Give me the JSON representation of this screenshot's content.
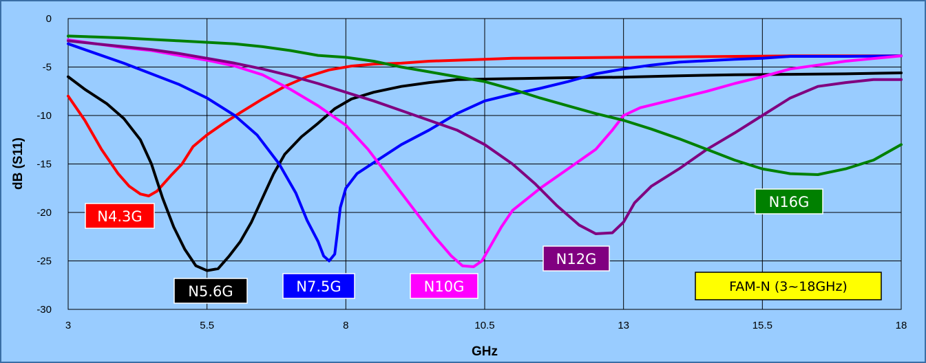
{
  "chart_data": {
    "type": "line",
    "xlabel": "GHz",
    "ylabel": "dB (S11)",
    "xlim": [
      3,
      18
    ],
    "ylim": [
      -30,
      0
    ],
    "x_ticks": [
      "3",
      "5.5",
      "8",
      "10.5",
      "13",
      "15.5",
      "18"
    ],
    "y_ticks": [
      "0",
      "-5",
      "-10",
      "-15",
      "-20",
      "-25",
      "-30"
    ],
    "grid": true,
    "legend": "none",
    "info_box": "FAM-N (3~18GHz)",
    "colors": {
      "background": "#99ccff",
      "frame": "#3a6ea5",
      "grid": "#000000",
      "info_box_fill": "#ffff00"
    },
    "series": [
      {
        "name": "N4.3G",
        "color": "#ff0000",
        "label_fill": "#ff0000",
        "label_text_color": "#ffffff",
        "points": [
          [
            3,
            -8
          ],
          [
            3.3,
            -10.5
          ],
          [
            3.6,
            -13.5
          ],
          [
            3.9,
            -16
          ],
          [
            4.1,
            -17.3
          ],
          [
            4.3,
            -18.1
          ],
          [
            4.45,
            -18.3
          ],
          [
            4.6,
            -17.8
          ],
          [
            4.85,
            -16.2
          ],
          [
            5.05,
            -15
          ],
          [
            5.25,
            -13.2
          ],
          [
            5.5,
            -12
          ],
          [
            5.8,
            -10.8
          ],
          [
            6.1,
            -9.7
          ],
          [
            6.5,
            -8.3
          ],
          [
            6.9,
            -7
          ],
          [
            7.3,
            -6
          ],
          [
            7.7,
            -5.3
          ],
          [
            8.1,
            -4.9
          ],
          [
            8.5,
            -4.7
          ],
          [
            9,
            -4.6
          ],
          [
            9.5,
            -4.4
          ],
          [
            10,
            -4.3
          ],
          [
            10.5,
            -4.2
          ],
          [
            11,
            -4.1
          ],
          [
            12,
            -4.05
          ],
          [
            13,
            -4
          ],
          [
            14,
            -3.95
          ],
          [
            15,
            -3.9
          ],
          [
            16,
            -3.85
          ],
          [
            17,
            -3.85
          ],
          [
            18,
            -3.85
          ]
        ]
      },
      {
        "name": "N5.6G",
        "color": "#000000",
        "label_fill": "#000000",
        "label_text_color": "#ffffff",
        "points": [
          [
            3,
            -6
          ],
          [
            3.3,
            -7.3
          ],
          [
            3.7,
            -8.8
          ],
          [
            4,
            -10.3
          ],
          [
            4.3,
            -12.5
          ],
          [
            4.5,
            -15
          ],
          [
            4.7,
            -18.5
          ],
          [
            4.9,
            -21.5
          ],
          [
            5.1,
            -23.8
          ],
          [
            5.3,
            -25.5
          ],
          [
            5.5,
            -26
          ],
          [
            5.7,
            -25.8
          ],
          [
            5.9,
            -24.5
          ],
          [
            6.1,
            -23
          ],
          [
            6.3,
            -21
          ],
          [
            6.5,
            -18.5
          ],
          [
            6.7,
            -16
          ],
          [
            6.9,
            -14
          ],
          [
            7.2,
            -12.2
          ],
          [
            7.5,
            -10.8
          ],
          [
            7.8,
            -9.3
          ],
          [
            8.1,
            -8.3
          ],
          [
            8.5,
            -7.6
          ],
          [
            9,
            -7
          ],
          [
            9.5,
            -6.6
          ],
          [
            10,
            -6.3
          ],
          [
            11,
            -6.2
          ],
          [
            12,
            -6.1
          ],
          [
            13,
            -6.05
          ],
          [
            14,
            -5.9
          ],
          [
            15,
            -5.8
          ],
          [
            16,
            -5.75
          ],
          [
            17,
            -5.7
          ],
          [
            18,
            -5.6
          ]
        ]
      },
      {
        "name": "N7.5G",
        "color": "#0000ff",
        "label_fill": "#0000ff",
        "label_text_color": "#ffffff",
        "points": [
          [
            3,
            -2.6
          ],
          [
            3.5,
            -3.6
          ],
          [
            4,
            -4.6
          ],
          [
            4.5,
            -5.7
          ],
          [
            5,
            -6.8
          ],
          [
            5.5,
            -8.2
          ],
          [
            6,
            -10
          ],
          [
            6.4,
            -12
          ],
          [
            6.8,
            -15
          ],
          [
            7.1,
            -18
          ],
          [
            7.3,
            -20.8
          ],
          [
            7.5,
            -23
          ],
          [
            7.6,
            -24.5
          ],
          [
            7.7,
            -25
          ],
          [
            7.8,
            -24.3
          ],
          [
            7.85,
            -22
          ],
          [
            7.9,
            -19.5
          ],
          [
            8,
            -17.5
          ],
          [
            8.2,
            -16
          ],
          [
            8.6,
            -14.5
          ],
          [
            9,
            -13
          ],
          [
            9.5,
            -11.5
          ],
          [
            10,
            -9.8
          ],
          [
            10.5,
            -8.5
          ],
          [
            11,
            -7.8
          ],
          [
            11.5,
            -7.2
          ],
          [
            12,
            -6.5
          ],
          [
            12.5,
            -5.7
          ],
          [
            13,
            -5.2
          ],
          [
            13.5,
            -4.8
          ],
          [
            14,
            -4.5
          ],
          [
            15,
            -4.2
          ],
          [
            15.5,
            -4.1
          ],
          [
            16,
            -3.9
          ],
          [
            17,
            -3.9
          ],
          [
            18,
            -3.85
          ]
        ]
      },
      {
        "name": "N10G",
        "color": "#ff00ff",
        "label_fill": "#ff00ff",
        "label_text_color": "#ffffff",
        "points": [
          [
            3,
            -2.2
          ],
          [
            3.5,
            -2.6
          ],
          [
            4,
            -3
          ],
          [
            4.5,
            -3.3
          ],
          [
            5,
            -3.8
          ],
          [
            5.5,
            -4.3
          ],
          [
            6,
            -4.9
          ],
          [
            6.5,
            -5.8
          ],
          [
            7,
            -7.3
          ],
          [
            7.5,
            -9
          ],
          [
            8,
            -11
          ],
          [
            8.4,
            -13.5
          ],
          [
            8.8,
            -16.5
          ],
          [
            9.2,
            -19.5
          ],
          [
            9.6,
            -22.5
          ],
          [
            9.9,
            -24.5
          ],
          [
            10.1,
            -25.5
          ],
          [
            10.3,
            -25.6
          ],
          [
            10.45,
            -25
          ],
          [
            10.6,
            -23.5
          ],
          [
            10.8,
            -21.5
          ],
          [
            11,
            -19.8
          ],
          [
            11.5,
            -17.5
          ],
          [
            12,
            -15.5
          ],
          [
            12.5,
            -13.5
          ],
          [
            12.8,
            -11.5
          ],
          [
            13,
            -10
          ],
          [
            13.3,
            -9.2
          ],
          [
            13.8,
            -8.5
          ],
          [
            14.5,
            -7.5
          ],
          [
            15,
            -6.7
          ],
          [
            15.5,
            -6
          ],
          [
            16,
            -5.2
          ],
          [
            16.5,
            -4.8
          ],
          [
            17,
            -4.4
          ],
          [
            18,
            -3.85
          ]
        ]
      },
      {
        "name": "N12G",
        "color": "#800080",
        "label_fill": "#800080",
        "label_text_color": "#ffffff",
        "points": [
          [
            3,
            -2.3
          ],
          [
            3.5,
            -2.6
          ],
          [
            4,
            -2.9
          ],
          [
            4.5,
            -3.2
          ],
          [
            5,
            -3.6
          ],
          [
            5.5,
            -4.1
          ],
          [
            6,
            -4.6
          ],
          [
            6.5,
            -5.2
          ],
          [
            7,
            -5.9
          ],
          [
            7.5,
            -6.7
          ],
          [
            8,
            -7.6
          ],
          [
            8.5,
            -8.5
          ],
          [
            9,
            -9.5
          ],
          [
            9.5,
            -10.5
          ],
          [
            10,
            -11.5
          ],
          [
            10.5,
            -13
          ],
          [
            11,
            -15
          ],
          [
            11.4,
            -17
          ],
          [
            11.8,
            -19.3
          ],
          [
            12.2,
            -21.3
          ],
          [
            12.5,
            -22.2
          ],
          [
            12.8,
            -22.1
          ],
          [
            13,
            -21
          ],
          [
            13.2,
            -19
          ],
          [
            13.5,
            -17.3
          ],
          [
            14,
            -15.5
          ],
          [
            14.5,
            -13.5
          ],
          [
            15,
            -11.8
          ],
          [
            15.5,
            -10
          ],
          [
            16,
            -8.2
          ],
          [
            16.5,
            -7
          ],
          [
            17,
            -6.6
          ],
          [
            17.5,
            -6.3
          ],
          [
            18,
            -6.3
          ]
        ]
      },
      {
        "name": "N16G",
        "color": "#008000",
        "label_fill": "#008000",
        "label_text_color": "#ffffff",
        "points": [
          [
            3,
            -1.8
          ],
          [
            3.5,
            -1.9
          ],
          [
            4,
            -2
          ],
          [
            5,
            -2.3
          ],
          [
            6,
            -2.6
          ],
          [
            6.5,
            -2.9
          ],
          [
            7,
            -3.3
          ],
          [
            7.5,
            -3.8
          ],
          [
            8,
            -4
          ],
          [
            8.5,
            -4.4
          ],
          [
            9,
            -5
          ],
          [
            9.5,
            -5.5
          ],
          [
            10,
            -6
          ],
          [
            10.5,
            -6.5
          ],
          [
            11,
            -7.3
          ],
          [
            11.5,
            -8.2
          ],
          [
            12,
            -9
          ],
          [
            12.5,
            -9.8
          ],
          [
            13,
            -10.5
          ],
          [
            13.5,
            -11.4
          ],
          [
            14,
            -12.4
          ],
          [
            14.5,
            -13.5
          ],
          [
            15,
            -14.6
          ],
          [
            15.5,
            -15.5
          ],
          [
            16,
            -16
          ],
          [
            16.5,
            -16.1
          ],
          [
            17,
            -15.5
          ],
          [
            17.5,
            -14.6
          ],
          [
            18,
            -13
          ]
        ]
      }
    ]
  }
}
